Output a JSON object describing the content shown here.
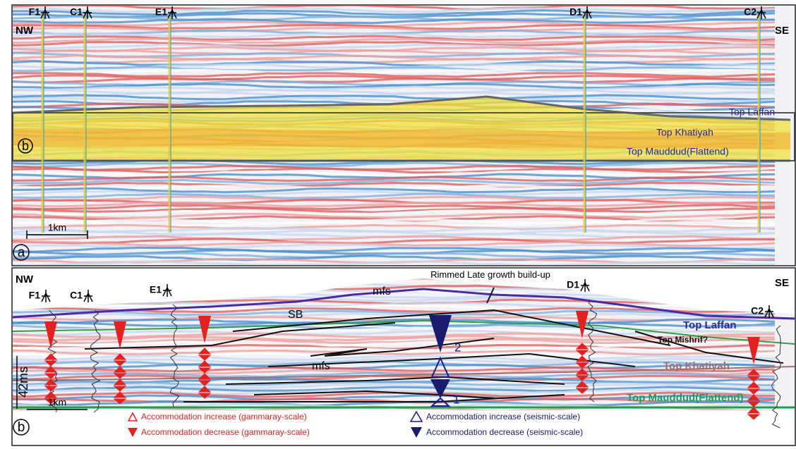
{
  "panel_a": {
    "label": "a",
    "inset_label": "b",
    "directions": [
      "NW",
      "SE"
    ],
    "wells": [
      "F1",
      "C1",
      "E1",
      "D1",
      "C2"
    ],
    "horizons": [
      "Top Laffan",
      "Top Khatiyah",
      "Top Mauddud(Flattend)"
    ],
    "scale_bar": "1km"
  },
  "panel_b": {
    "label": "b",
    "directions": [
      "NW",
      "SE"
    ],
    "wells": [
      "F1",
      "C1",
      "E1",
      "D1",
      "C2"
    ],
    "annotation": "Rimmed Late growth build-up",
    "surfaces": [
      "mfs",
      "SB",
      "mfs"
    ],
    "horizons": [
      "Top Laffan",
      "Top Mishrif?",
      "Top Khatiyah",
      "Top Mauddud(Flattend)"
    ],
    "time_scale": "42ms",
    "scale_bar": "1km",
    "cycle_numbers": [
      "2",
      "1"
    ]
  },
  "legend": [
    "Accommodation increase (gammaray-scale)",
    "Accommodation decrease (gammaray-scale)",
    "Accommodation increase (seismic-scale)",
    "Accommodation decrease (seismic-scale)"
  ]
}
